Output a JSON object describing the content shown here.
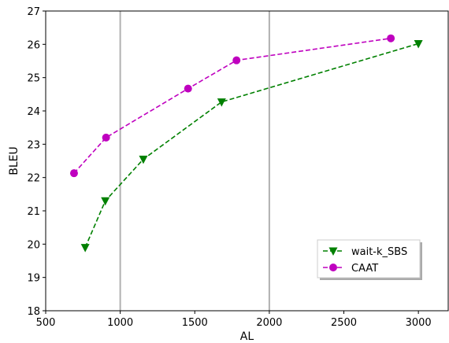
{
  "chart_data": {
    "type": "line",
    "xlabel": "AL",
    "ylabel": "BLEU",
    "xlim": [
      500,
      3200
    ],
    "ylim": [
      18,
      27
    ],
    "x_ticks": [
      500,
      1000,
      1500,
      2000,
      2500,
      3000
    ],
    "y_ticks": [
      18,
      19,
      20,
      21,
      22,
      23,
      24,
      25,
      26,
      27
    ],
    "vertical_reference_lines": [
      1000,
      2000
    ],
    "grid": false,
    "legend_position": "lower-right",
    "series": [
      {
        "name": "wait-k_SBS",
        "color": "#008000",
        "marker": "triangle-down",
        "line_style": "dashed",
        "x": [
          765,
          900,
          1155,
          1680,
          3000
        ],
        "y": [
          19.9,
          21.3,
          22.55,
          24.27,
          26.02
        ]
      },
      {
        "name": "CAAT",
        "color": "#bf00bf",
        "marker": "circle",
        "line_style": "dashed",
        "x": [
          690,
          905,
          1455,
          1780,
          2815
        ],
        "y": [
          22.13,
          23.2,
          24.67,
          25.52,
          26.18
        ]
      }
    ]
  }
}
